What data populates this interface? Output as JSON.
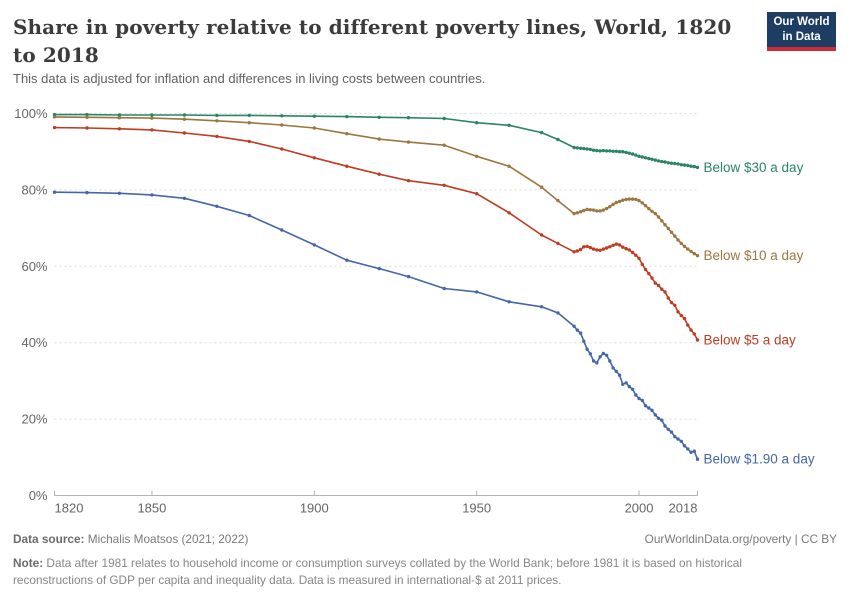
{
  "header": {
    "title": "Share in poverty relative to different poverty lines, World, 1820 to 2018",
    "subtitle": "This data is adjusted for inflation and differences in living costs between countries.",
    "logo": {
      "line1": "Our World",
      "line2": "in Data"
    }
  },
  "colors": {
    "logo_bg": "#1D3D63",
    "logo_red": "#CE2B37",
    "grid": "#DBDBDB",
    "axis": "#B3B3B3",
    "tick_text": "#666666"
  },
  "chart_data": {
    "type": "line",
    "title": "Share in poverty relative to different poverty lines, World, 1820 to 2018",
    "xlabel": "",
    "ylabel": "",
    "xlim": [
      1820,
      2018
    ],
    "ylim": [
      0,
      100
    ],
    "grid": "horizontal-dashed",
    "legend_position": "line-end-labels",
    "yticks": [
      {
        "v": 0,
        "label": "0%"
      },
      {
        "v": 20,
        "label": "20%"
      },
      {
        "v": 40,
        "label": "40%"
      },
      {
        "v": 60,
        "label": "60%"
      },
      {
        "v": 80,
        "label": "80%"
      },
      {
        "v": 100,
        "label": "100%"
      }
    ],
    "xticks": [
      {
        "v": 1820,
        "label": "1820"
      },
      {
        "v": 1850,
        "label": "1850"
      },
      {
        "v": 1900,
        "label": "1900"
      },
      {
        "v": 1950,
        "label": "1950"
      },
      {
        "v": 2000,
        "label": "2000"
      },
      {
        "v": 2018,
        "label": "2018"
      }
    ],
    "x": [
      1820,
      1830,
      1840,
      1850,
      1860,
      1870,
      1880,
      1890,
      1900,
      1910,
      1920,
      1929,
      1940,
      1950,
      1960,
      1970,
      1975,
      1980,
      1981,
      1982,
      1983,
      1984,
      1985,
      1986,
      1987,
      1988,
      1989,
      1990,
      1991,
      1992,
      1993,
      1994,
      1995,
      1996,
      1997,
      1998,
      1999,
      2000,
      2001,
      2002,
      2003,
      2004,
      2005,
      2006,
      2007,
      2008,
      2009,
      2010,
      2011,
      2012,
      2013,
      2014,
      2015,
      2016,
      2017,
      2018
    ],
    "series": [
      {
        "name": "Below $30 a day",
        "color": "#2C8465",
        "values": [
          99.7,
          99.7,
          99.6,
          99.6,
          99.6,
          99.5,
          99.5,
          99.4,
          99.3,
          99.2,
          99.0,
          98.9,
          98.7,
          97.6,
          96.9,
          95.0,
          93.2,
          91.1,
          91.0,
          90.9,
          90.8,
          90.7,
          90.6,
          90.4,
          90.3,
          90.2,
          90.3,
          90.2,
          90.2,
          90.1,
          90.1,
          90.0,
          90.0,
          89.8,
          89.6,
          89.4,
          89.1,
          88.8,
          88.6,
          88.4,
          88.2,
          88.0,
          87.8,
          87.6,
          87.4,
          87.3,
          87.1,
          87.0,
          86.9,
          86.8,
          86.6,
          86.5,
          86.4,
          86.2,
          86.1,
          85.9
        ]
      },
      {
        "name": "Below $10 a day",
        "color": "#9D7540",
        "values": [
          99.1,
          99.0,
          98.9,
          98.8,
          98.5,
          98.1,
          97.6,
          97.0,
          96.2,
          94.7,
          93.3,
          92.5,
          91.7,
          88.8,
          86.2,
          80.7,
          77.2,
          73.8,
          74.0,
          74.3,
          74.6,
          74.9,
          74.8,
          74.7,
          74.5,
          74.5,
          74.7,
          75.1,
          75.6,
          76.2,
          76.7,
          77.0,
          77.3,
          77.5,
          77.6,
          77.6,
          77.5,
          77.2,
          76.6,
          75.9,
          75.1,
          74.4,
          73.8,
          72.9,
          71.9,
          70.9,
          69.9,
          68.9,
          67.9,
          66.9,
          66.0,
          65.2,
          64.5,
          63.9,
          63.3,
          62.8
        ]
      },
      {
        "name": "Below $5 a day",
        "color": "#BE3D22",
        "values": [
          96.3,
          96.2,
          96.0,
          95.7,
          94.9,
          94.0,
          92.7,
          90.7,
          88.4,
          86.2,
          84.1,
          82.4,
          81.2,
          79.0,
          74.0,
          68.2,
          66.0,
          63.8,
          64.0,
          64.4,
          65.1,
          65.2,
          64.9,
          64.5,
          64.3,
          64.2,
          64.5,
          64.8,
          65.1,
          65.5,
          65.8,
          65.6,
          65.0,
          64.6,
          64.3,
          63.6,
          62.9,
          62.1,
          60.5,
          59.2,
          58.1,
          56.9,
          55.6,
          55.0,
          54.0,
          53.3,
          51.7,
          50.5,
          49.8,
          48.1,
          47.1,
          46.3,
          44.6,
          43.3,
          42.3,
          40.7
        ]
      },
      {
        "name": "Below $1.90 a day",
        "color": "#4467A8",
        "values": [
          79.4,
          79.3,
          79.1,
          78.7,
          77.8,
          75.7,
          73.3,
          69.5,
          65.6,
          61.6,
          59.4,
          57.3,
          54.2,
          53.3,
          50.7,
          49.4,
          47.8,
          44.3,
          43.3,
          42.5,
          40.4,
          38.3,
          37.1,
          35.2,
          34.7,
          36.3,
          37.2,
          36.7,
          35.2,
          33.4,
          32.5,
          31.5,
          29.1,
          29.5,
          28.5,
          27.8,
          26.3,
          25.4,
          24.9,
          23.5,
          22.9,
          22.3,
          21.1,
          20.2,
          19.7,
          18.2,
          17.3,
          16.6,
          15.4,
          14.8,
          14.2,
          13.0,
          12.2,
          11.3,
          11.6,
          9.5
        ]
      }
    ]
  },
  "footer": {
    "source_prefix": "Data source:",
    "source_rest": " Michalis Moatsos (2021; 2022)",
    "link": "OurWorldinData.org/poverty | CC BY",
    "note_prefix": "Note:",
    "note_rest": " Data after 1981 relates to household income or consumption surveys collated by the World Bank; before 1981 it is based on historical reconstructions of GDP per capita and inequality data. Data is measured in international-$ at 2011 prices."
  }
}
